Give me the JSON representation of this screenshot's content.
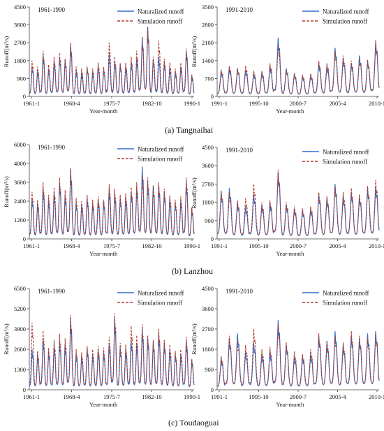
{
  "colors": {
    "naturalized": "#2e6fcb",
    "simulation": "#b23a2a",
    "axis": "#444444"
  },
  "captions": [
    {
      "prefix": "(a)",
      "text": " Tangnaihai"
    },
    {
      "prefix": "(b)",
      "text": " Lanzhou"
    },
    {
      "prefix": "(c)",
      "text": " Toudaoguai"
    }
  ],
  "chart_data": [
    {
      "type": "line",
      "station": "Tangnaihai",
      "period_label": "1961-1990",
      "xlabel": "Year-month",
      "ylabel": "Runoff(m³/s)",
      "ylim": [
        0,
        4500
      ],
      "yticks": [
        "0",
        "900",
        "1800",
        "2700",
        "3600",
        "4500"
      ],
      "xticks": [
        "1961-1",
        "1968-4",
        "1975-7",
        "1982-10",
        "1990-1"
      ],
      "years": 30,
      "legend_position": "top-right",
      "series": [
        {
          "name": "Naturalized runoff",
          "style": "solid",
          "annual_peaks": [
            1500,
            1300,
            2100,
            1400,
            1700,
            2000,
            1850,
            2600,
            1300,
            1200,
            1450,
            1250,
            1500,
            1350,
            2100,
            1800,
            1600,
            1500,
            1700,
            1900,
            3000,
            3500,
            1900,
            2000,
            1700,
            1450,
            1250,
            1500,
            2300,
            1050
          ]
        },
        {
          "name": "Simulation runoff",
          "style": "dashed",
          "annual_peaks": [
            1800,
            1500,
            2300,
            1600,
            2000,
            2200,
            1900,
            2700,
            1500,
            1400,
            1500,
            1400,
            1700,
            1500,
            2700,
            2000,
            1700,
            1700,
            2000,
            2300,
            2900,
            3400,
            2000,
            2800,
            1900,
            1700,
            1400,
            1700,
            2400,
            1100
          ]
        }
      ]
    },
    {
      "type": "line",
      "station": "Tangnaihai",
      "period_label": "1991-2010",
      "xlabel": "Year-month",
      "ylabel": "Runoff(m³/s)",
      "ylim": [
        0,
        3500
      ],
      "yticks": [
        "0",
        "700",
        "1400",
        "2100",
        "2800",
        "3500"
      ],
      "xticks": [
        "1991-1",
        "1995-10",
        "2000-7",
        "2005-4",
        "2010-1"
      ],
      "years": 20,
      "legend_position": "top-right",
      "series": [
        {
          "name": "Naturalized runoff",
          "style": "solid",
          "annual_peaks": [
            1000,
            1150,
            1100,
            1050,
            900,
            950,
            1200,
            2300,
            1100,
            900,
            800,
            850,
            1300,
            1200,
            1900,
            1500,
            1300,
            1600,
            1400,
            2100
          ]
        },
        {
          "name": "Simulation runoff",
          "style": "dashed",
          "annual_peaks": [
            1050,
            1200,
            1100,
            1200,
            1000,
            1000,
            1300,
            2000,
            1050,
            900,
            850,
            900,
            1400,
            1300,
            1800,
            1600,
            1400,
            1500,
            1450,
            2200
          ]
        }
      ]
    },
    {
      "type": "line",
      "station": "Lanzhou",
      "period_label": "1961-1990",
      "xlabel": "Year-month",
      "ylabel": "Runoff(m³/s)",
      "ylim": [
        0,
        6000
      ],
      "yticks": [
        "0",
        "1200",
        "2400",
        "3600",
        "4800",
        "6000"
      ],
      "xticks": [
        "1961-1",
        "1968-4",
        "1975-7",
        "1982-10",
        "1990-1"
      ],
      "years": 30,
      "legend_position": "top-right",
      "series": [
        {
          "name": "Naturalized runoff",
          "style": "solid",
          "annual_peaks": [
            2600,
            2300,
            3200,
            2500,
            2900,
            3600,
            2800,
            4400,
            2300,
            2200,
            2600,
            2300,
            2500,
            2400,
            3200,
            2900,
            2600,
            2700,
            3000,
            3300,
            4600,
            3600,
            3400,
            3400,
            3000,
            2600,
            2300,
            2500,
            3600,
            1900
          ]
        },
        {
          "name": "Simulation runoff",
          "style": "dashed",
          "annual_peaks": [
            3000,
            2500,
            3600,
            2800,
            3300,
            3900,
            3100,
            4500,
            2600,
            2400,
            2800,
            2500,
            2700,
            2500,
            3500,
            3200,
            2800,
            2900,
            3300,
            3600,
            4100,
            3900,
            3400,
            3600,
            3200,
            2800,
            2500,
            2700,
            3900,
            2000
          ]
        }
      ]
    },
    {
      "type": "line",
      "station": "Lanzhou",
      "period_label": "1991-2010",
      "xlabel": "Year-month",
      "ylabel": "Runoff(m³/s)",
      "ylim": [
        0,
        4500
      ],
      "yticks": [
        "0",
        "900",
        "1800",
        "2700",
        "3600",
        "4500"
      ],
      "xticks": [
        "1991-1",
        "1995-10",
        "2000-7",
        "2005-4",
        "2010-1"
      ],
      "years": 20,
      "legend_position": "top-right",
      "series": [
        {
          "name": "Naturalized runoff",
          "style": "solid",
          "annual_peaks": [
            2300,
            2500,
            1800,
            1600,
            2200,
            1700,
            1800,
            3300,
            1700,
            1500,
            1400,
            1500,
            2200,
            2000,
            2700,
            2100,
            2300,
            2100,
            2500,
            2600
          ]
        },
        {
          "name": "Simulation runoff",
          "style": "dashed",
          "annual_peaks": [
            2400,
            2300,
            1900,
            2000,
            2700,
            1800,
            1900,
            3400,
            1800,
            1600,
            1500,
            1600,
            2300,
            2100,
            2600,
            2300,
            2500,
            2200,
            2600,
            2900
          ]
        }
      ]
    },
    {
      "type": "line",
      "station": "Toudaoguai",
      "period_label": "1961-1990",
      "xlabel": "Year-month",
      "ylabel": "Runoff(m³/s)",
      "ylim": [
        0,
        6500
      ],
      "yticks": [
        "0",
        "1300",
        "2600",
        "3900",
        "5200",
        "6500"
      ],
      "xticks": [
        "1961-1",
        "1968-4",
        "1975-7",
        "1982-10",
        "1990-1"
      ],
      "years": 30,
      "legend_position": "top-right",
      "series": [
        {
          "name": "Naturalized runoff",
          "style": "solid",
          "annual_peaks": [
            2600,
            2300,
            3300,
            2500,
            2800,
            3100,
            2900,
            4600,
            2300,
            2200,
            2700,
            2300,
            2500,
            2400,
            3000,
            4600,
            2700,
            2600,
            3200,
            3000,
            3900,
            3300,
            3100,
            3600,
            3000,
            2600,
            2300,
            2300,
            3100,
            1900
          ]
        },
        {
          "name": "Simulation runoff",
          "style": "dashed",
          "annual_peaks": [
            4300,
            2500,
            3800,
            2700,
            3200,
            3600,
            3300,
            4800,
            2600,
            2400,
            2800,
            2600,
            2800,
            2700,
            3400,
            4900,
            3000,
            2900,
            4100,
            3500,
            4200,
            3500,
            3200,
            3900,
            3200,
            2900,
            2500,
            2600,
            3400,
            2000
          ]
        }
      ]
    },
    {
      "type": "line",
      "station": "Toudaoguai",
      "period_label": "1991-2010",
      "xlabel": "Year-month",
      "ylabel": "Runoff(m³/s)",
      "ylim": [
        0,
        4500
      ],
      "yticks": [
        "0",
        "900",
        "1800",
        "2700",
        "3600",
        "4500"
      ],
      "xticks": [
        "1991-1",
        "1995-10",
        "2000-7",
        "2005-4",
        "2010-1"
      ],
      "years": 20,
      "legend_position": "top-right",
      "series": [
        {
          "name": "Naturalized runoff",
          "style": "solid",
          "annual_peaks": [
            1400,
            2300,
            2500,
            1700,
            2100,
            1600,
            1700,
            3100,
            2000,
            1500,
            1500,
            1600,
            2400,
            2100,
            2600,
            2000,
            2400,
            2300,
            2500,
            2600
          ]
        },
        {
          "name": "Simulation runoff",
          "style": "dashed",
          "annual_peaks": [
            1500,
            2400,
            2200,
            2000,
            2700,
            1800,
            1900,
            2900,
            2100,
            1700,
            1600,
            1800,
            2500,
            2200,
            2400,
            2100,
            2600,
            2400,
            2300,
            2500
          ]
        }
      ]
    }
  ]
}
